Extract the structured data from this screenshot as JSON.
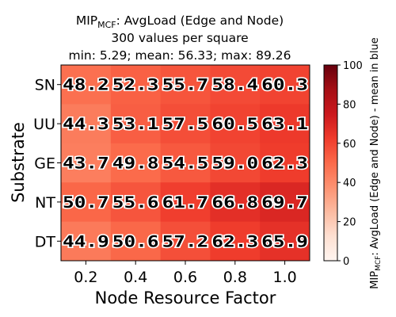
{
  "chart_data": {
    "type": "heatmap",
    "title": {
      "line1_prefix": "MIP",
      "line1_subscript": "MCF",
      "line1_suffix": ": AvgLoad (Edge and Node)",
      "line2": "300 values per square",
      "line3": "min: 5.29; mean: 56.33; max: 89.26"
    },
    "xlabel": "Node Resource Factor",
    "ylabel": "Substrate",
    "x_categories": [
      "0.2",
      "0.4",
      "0.6",
      "0.8",
      "1.0"
    ],
    "y_categories": [
      "SN",
      "UU",
      "GE",
      "NT",
      "DT"
    ],
    "values": [
      [
        48.2,
        52.3,
        55.7,
        58.4,
        60.3
      ],
      [
        44.3,
        53.1,
        57.5,
        60.5,
        63.1
      ],
      [
        43.7,
        49.8,
        54.5,
        59.0,
        62.3
      ],
      [
        50.7,
        55.6,
        61.7,
        66.8,
        69.7
      ],
      [
        44.9,
        50.6,
        57.2,
        62.3,
        65.9
      ]
    ],
    "value_labels": [
      [
        "48.2",
        "52.3",
        "55.7",
        "58.4",
        "60.3"
      ],
      [
        "44.3",
        "53.1",
        "57.5",
        "60.5",
        "63.1"
      ],
      [
        "43.7",
        "49.8",
        "54.5",
        "59.0",
        "62.3"
      ],
      [
        "50.7",
        "55.6",
        "61.7",
        "66.8",
        "69.7"
      ],
      [
        "44.9",
        "50.6",
        "57.2",
        "62.3",
        "65.9"
      ]
    ],
    "colorbar": {
      "range": [
        0,
        100
      ],
      "ticks": [
        "0",
        "20",
        "40",
        "60",
        "80",
        "100"
      ],
      "label_prefix": "MIP",
      "label_subscript": "MCF",
      "label_suffix": ": AvgLoad (Edge and Node) - mean in blue",
      "colormap": "Reds"
    }
  }
}
